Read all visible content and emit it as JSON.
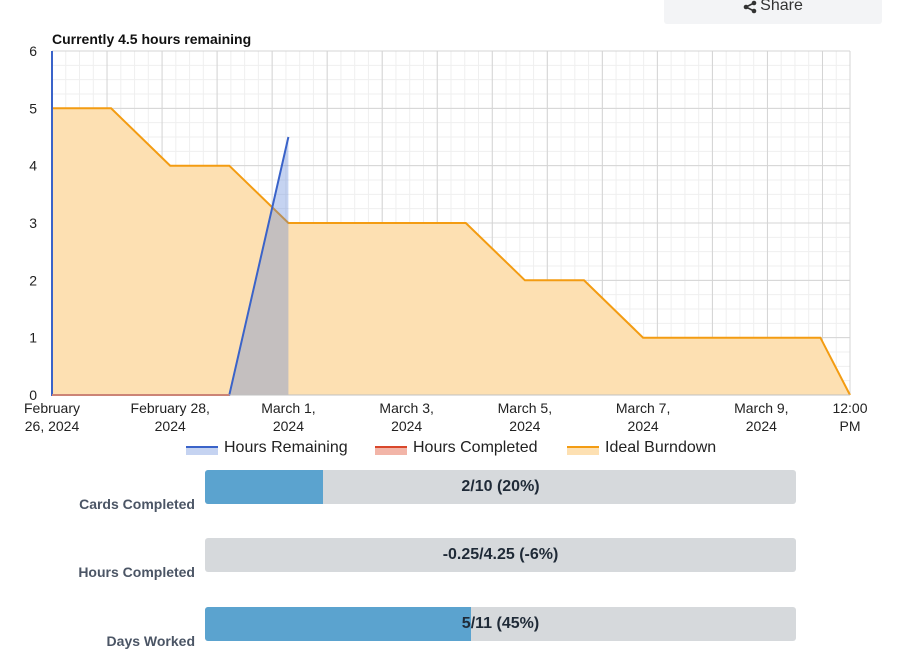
{
  "share": {
    "label": "Share",
    "icon": "share-icon"
  },
  "chart_data": {
    "type": "area",
    "title": "Currently 4.5 hours remaining",
    "xlabel": "",
    "ylabel": "",
    "ylim": [
      0,
      6
    ],
    "yticks": [
      "0",
      "1",
      "2",
      "3",
      "4",
      "5",
      "6"
    ],
    "xlim": [
      "2024-02-26T00:00",
      "2024-03-10T12:00"
    ],
    "xticks": [
      {
        "x": "2024-02-26T00:00",
        "lines": [
          "February",
          "26, 2024"
        ]
      },
      {
        "x": "2024-02-28T00:00",
        "lines": [
          "February 28,",
          "2024"
        ]
      },
      {
        "x": "2024-03-01T00:00",
        "lines": [
          "March 1,",
          "2024"
        ]
      },
      {
        "x": "2024-03-03T00:00",
        "lines": [
          "March 3,",
          "2024"
        ]
      },
      {
        "x": "2024-03-05T00:00",
        "lines": [
          "March 5,",
          "2024"
        ]
      },
      {
        "x": "2024-03-07T00:00",
        "lines": [
          "March 7,",
          "2024"
        ]
      },
      {
        "x": "2024-03-09T00:00",
        "lines": [
          "March 9,",
          "2024"
        ]
      },
      {
        "x": "2024-03-10T12:00",
        "lines": [
          "12:00",
          "PM"
        ]
      }
    ],
    "grid": true,
    "legend": "bottom",
    "series": [
      {
        "name": "Ideal Burndown",
        "color": "#f39c12",
        "fill": "#fde0b2",
        "points": [
          [
            "2024-02-26T00:00",
            5
          ],
          [
            "2024-02-27T00:00",
            5
          ],
          [
            "2024-02-28T00:00",
            4
          ],
          [
            "2024-02-29T00:00",
            4
          ],
          [
            "2024-03-01T00:00",
            3
          ],
          [
            "2024-03-02T00:00",
            3
          ],
          [
            "2024-03-03T00:00",
            3
          ],
          [
            "2024-03-04T00:00",
            3
          ],
          [
            "2024-03-05T00:00",
            2
          ],
          [
            "2024-03-06T00:00",
            2
          ],
          [
            "2024-03-07T00:00",
            1
          ],
          [
            "2024-03-08T00:00",
            1
          ],
          [
            "2024-03-09T00:00",
            1
          ],
          [
            "2024-03-10T00:00",
            1
          ],
          [
            "2024-03-10T12:00",
            0
          ]
        ]
      },
      {
        "name": "Hours Remaining",
        "color": "#3a63c9",
        "fill": "rgba(90,128,215,0.35)",
        "points": [
          [
            "2024-02-26T00:00",
            6
          ],
          [
            "2024-02-26T00:00",
            0
          ],
          [
            "2024-02-29T00:00",
            0
          ],
          [
            "2024-03-01T00:00",
            4.5
          ]
        ]
      },
      {
        "name": "Hours Completed",
        "color": "#d9472b",
        "fill": "#f2b5a8",
        "points": [
          [
            "2024-02-26T00:00",
            0
          ],
          [
            "2024-02-29T00:00",
            0
          ]
        ]
      }
    ],
    "legend_order": [
      "Hours Remaining",
      "Hours Completed",
      "Ideal Burndown"
    ]
  },
  "stats": [
    {
      "label": "Cards Completed",
      "text": "2/10 (20%)",
      "fraction": 0.2
    },
    {
      "label": "Hours Completed",
      "text": "-0.25/4.25 (-6%)",
      "fraction": 0
    },
    {
      "label": "Days Worked",
      "text": "5/11 (45%)",
      "fraction": 0.45
    }
  ]
}
